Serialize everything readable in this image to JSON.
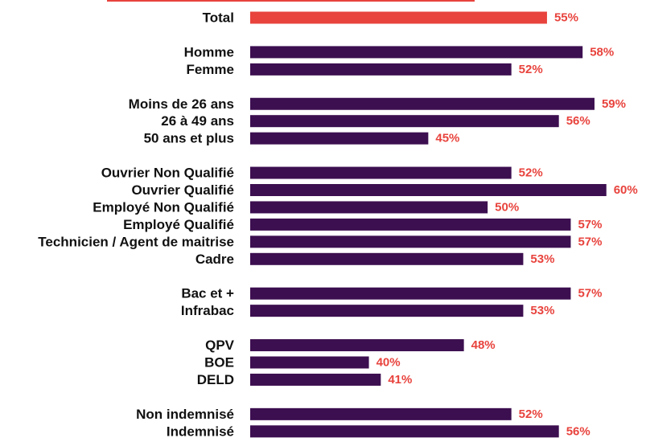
{
  "chart_data": {
    "type": "barh",
    "categories": [
      "Total",
      null,
      "Homme",
      "Femme",
      null,
      "Moins de 26 ans",
      "26 à 49 ans",
      "50 ans et plus",
      null,
      "Ouvrier Non Qualifié",
      "Ouvrier Qualifié",
      "Employé Non Qualifié",
      "Employé Qualifié",
      "Technicien / Agent de maitrise",
      "Cadre",
      null,
      "Bac et +",
      "Infrabac",
      null,
      "QPV",
      "BOE",
      "DELD",
      null,
      "Non indemnisé",
      "Indemnisé"
    ],
    "values": [
      55,
      null,
      58,
      52,
      null,
      59,
      56,
      45,
      null,
      52,
      60,
      50,
      57,
      57,
      53,
      null,
      57,
      53,
      null,
      48,
      40,
      41,
      null,
      52,
      56
    ],
    "value_labels": [
      "55%",
      null,
      "58%",
      "52%",
      null,
      "59%",
      "56%",
      "45%",
      null,
      "52%",
      "60%",
      "50%",
      "57%",
      "57%",
      "53%",
      null,
      "57%",
      "53%",
      null,
      "48%",
      "40%",
      "41%",
      null,
      "52%",
      "56%"
    ],
    "colors": [
      "#e8433d",
      null,
      "#3c0f50",
      "#3c0f50",
      null,
      "#3c0f50",
      "#3c0f50",
      "#3c0f50",
      null,
      "#3c0f50",
      "#3c0f50",
      "#3c0f50",
      "#3c0f50",
      "#3c0f50",
      "#3c0f50",
      null,
      "#3c0f50",
      "#3c0f50",
      null,
      "#3c0f50",
      "#3c0f50",
      "#3c0f50",
      null,
      "#3c0f50",
      "#3c0f50"
    ],
    "label_color": "#e8433d",
    "xlim": [
      30,
      63
    ]
  }
}
